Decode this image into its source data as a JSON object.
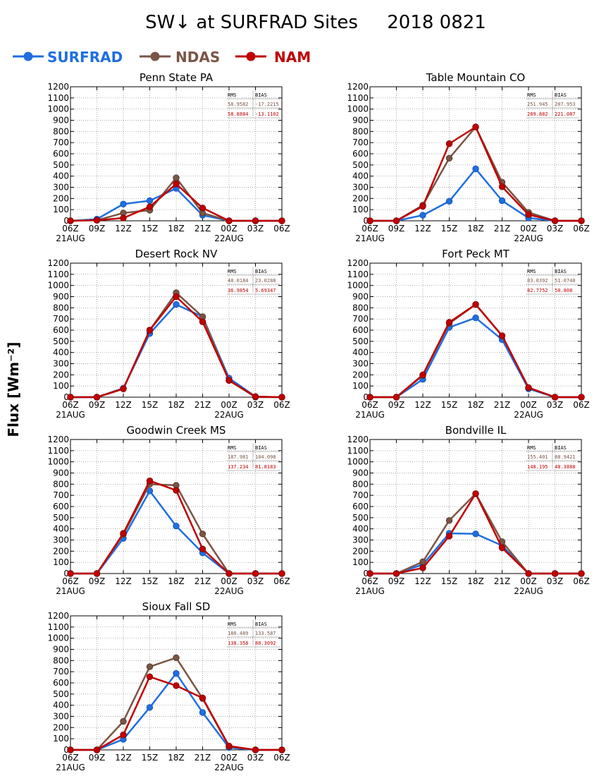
{
  "title": "SW↓ at SURFRAD Sites     2018 0821",
  "ylabel": "Flux [Wm⁻²]",
  "legend": [
    {
      "name": "SURFRAD",
      "color": "#1f6fe0"
    },
    {
      "name": "NDAS",
      "color": "#7a5545"
    },
    {
      "name": "NAM",
      "color": "#c00000"
    }
  ],
  "stats_headers": [
    "RMS",
    "BIAS"
  ],
  "chart_data": [
    {
      "type": "line",
      "title": "Penn State PA",
      "x": [
        "06Z",
        "09Z",
        "12Z",
        "15Z",
        "18Z",
        "21Z",
        "00Z",
        "03Z",
        "06Z"
      ],
      "x_dates": [
        {
          "label": "21AUG",
          "at": "06Z"
        },
        {
          "label": "22AUG",
          "at": "00Z"
        }
      ],
      "ylim": [
        0,
        1200
      ],
      "yticks": [
        0,
        100,
        200,
        300,
        400,
        500,
        600,
        700,
        800,
        900,
        1000,
        1100,
        1200
      ],
      "grid": true,
      "series": [
        {
          "name": "SURFRAD",
          "values": [
            0,
            15,
            150,
            180,
            290,
            50,
            0,
            0,
            0
          ]
        },
        {
          "name": "NDAS",
          "values": [
            0,
            5,
            70,
            95,
            385,
            70,
            0,
            0,
            0
          ]
        },
        {
          "name": "NAM",
          "values": [
            0,
            5,
            25,
            125,
            330,
            115,
            0,
            0,
            0
          ]
        }
      ],
      "stats": {
        "NDAS": [
          "58.9582",
          "-17.2215"
        ],
        "NAM": [
          "58.8884",
          "-13.1102"
        ]
      }
    },
    {
      "type": "line",
      "title": "Table Mountain CO",
      "x": [
        "06Z",
        "09Z",
        "12Z",
        "15Z",
        "18Z",
        "21Z",
        "00Z",
        "03Z",
        "06Z"
      ],
      "x_dates": [
        {
          "label": "21AUG",
          "at": "06Z"
        },
        {
          "label": "22AUG",
          "at": "00Z"
        }
      ],
      "ylim": [
        0,
        1200
      ],
      "yticks": [
        0,
        100,
        200,
        300,
        400,
        500,
        600,
        700,
        800,
        900,
        1000,
        1100,
        1200
      ],
      "grid": true,
      "series": [
        {
          "name": "SURFRAD",
          "values": [
            0,
            0,
            50,
            175,
            465,
            180,
            25,
            0,
            0
          ]
        },
        {
          "name": "NDAS",
          "values": [
            0,
            0,
            140,
            560,
            840,
            345,
            75,
            0,
            0
          ]
        },
        {
          "name": "NAM",
          "values": [
            0,
            0,
            130,
            690,
            840,
            305,
            55,
            0,
            0
          ]
        }
      ],
      "stats": {
        "NDAS": [
          "251.945",
          "207.953"
        ],
        "NAM": [
          "289.882",
          "221.087"
        ]
      }
    },
    {
      "type": "line",
      "title": "Desert Rock NV",
      "x": [
        "06Z",
        "09Z",
        "12Z",
        "15Z",
        "18Z",
        "21Z",
        "00Z",
        "03Z",
        "06Z"
      ],
      "x_dates": [
        {
          "label": "21AUG",
          "at": "06Z"
        },
        {
          "label": "22AUG",
          "at": "00Z"
        }
      ],
      "ylim": [
        0,
        1200
      ],
      "yticks": [
        0,
        100,
        200,
        300,
        400,
        500,
        600,
        700,
        800,
        900,
        1000,
        1100,
        1200
      ],
      "grid": true,
      "series": [
        {
          "name": "SURFRAD",
          "values": [
            0,
            0,
            80,
            570,
            830,
            720,
            170,
            5,
            0
          ]
        },
        {
          "name": "NDAS",
          "values": [
            0,
            0,
            75,
            600,
            935,
            720,
            150,
            0,
            0
          ]
        },
        {
          "name": "NAM",
          "values": [
            0,
            0,
            75,
            600,
            900,
            675,
            150,
            5,
            0
          ]
        }
      ],
      "stats": {
        "NDAS": [
          "48.0184",
          "23.0288"
        ],
        "NAM": [
          "36.9854",
          "5.69347"
        ]
      }
    },
    {
      "type": "line",
      "title": "Fort Peck MT",
      "x": [
        "06Z",
        "09Z",
        "12Z",
        "15Z",
        "18Z",
        "21Z",
        "00Z",
        "03Z",
        "06Z"
      ],
      "x_dates": [
        {
          "label": "21AUG",
          "at": "06Z"
        },
        {
          "label": "22AUG",
          "at": "00Z"
        }
      ],
      "ylim": [
        0,
        1200
      ],
      "yticks": [
        0,
        100,
        200,
        300,
        400,
        500,
        600,
        700,
        800,
        900,
        1000,
        1100,
        1200
      ],
      "grid": true,
      "series": [
        {
          "name": "SURFRAD",
          "values": [
            0,
            0,
            160,
            625,
            710,
            515,
            75,
            0,
            0
          ]
        },
        {
          "name": "NDAS",
          "values": [
            0,
            0,
            195,
            660,
            830,
            550,
            85,
            0,
            0
          ]
        },
        {
          "name": "NAM",
          "values": [
            0,
            0,
            200,
            670,
            830,
            550,
            85,
            0,
            0
          ]
        }
      ],
      "stats": {
        "NDAS": [
          "83.0392",
          "51.0748"
        ],
        "NAM": [
          "82.7752",
          "50.808"
        ]
      }
    },
    {
      "type": "line",
      "title": "Goodwin Creek MS",
      "x": [
        "06Z",
        "09Z",
        "12Z",
        "15Z",
        "18Z",
        "21Z",
        "00Z",
        "03Z",
        "06Z"
      ],
      "x_dates": [
        {
          "label": "21AUG",
          "at": "06Z"
        },
        {
          "label": "22AUG",
          "at": "00Z"
        }
      ],
      "ylim": [
        0,
        1200
      ],
      "yticks": [
        0,
        100,
        200,
        300,
        400,
        500,
        600,
        700,
        800,
        900,
        1000,
        1100,
        1200
      ],
      "grid": true,
      "series": [
        {
          "name": "SURFRAD",
          "values": [
            0,
            0,
            315,
            740,
            425,
            185,
            0,
            0,
            0
          ]
        },
        {
          "name": "NDAS",
          "values": [
            0,
            0,
            350,
            800,
            790,
            355,
            0,
            0,
            0
          ]
        },
        {
          "name": "NAM",
          "values": [
            0,
            0,
            360,
            830,
            745,
            220,
            0,
            0,
            0
          ]
        }
      ],
      "stats": {
        "NDAS": [
          "187.981",
          "104.098"
        ],
        "NAM": [
          "137.234",
          "81.8183"
        ]
      }
    },
    {
      "type": "line",
      "title": "Bondville IL",
      "x": [
        "06Z",
        "09Z",
        "12Z",
        "15Z",
        "18Z",
        "21Z",
        "00Z",
        "03Z",
        "06Z"
      ],
      "x_dates": [
        {
          "label": "21AUG",
          "at": "06Z"
        },
        {
          "label": "22AUG",
          "at": "00Z"
        }
      ],
      "ylim": [
        0,
        1200
      ],
      "yticks": [
        0,
        100,
        200,
        300,
        400,
        500,
        600,
        700,
        800,
        900,
        1000,
        1100,
        1200
      ],
      "grid": true,
      "series": [
        {
          "name": "SURFRAD",
          "values": [
            0,
            0,
            80,
            360,
            355,
            250,
            0,
            0,
            0
          ]
        },
        {
          "name": "NDAS",
          "values": [
            0,
            0,
            105,
            475,
            715,
            285,
            0,
            0,
            0
          ]
        },
        {
          "name": "NAM",
          "values": [
            0,
            0,
            50,
            335,
            715,
            230,
            0,
            0,
            0
          ]
        }
      ],
      "stats": {
        "NDAS": [
          "155.401",
          "88.9421"
        ],
        "NAM": [
          "148.195",
          "48.3888"
        ]
      }
    },
    {
      "type": "line",
      "title": "Sioux Fall SD",
      "x": [
        "06Z",
        "09Z",
        "12Z",
        "15Z",
        "18Z",
        "21Z",
        "00Z",
        "03Z",
        "06Z"
      ],
      "x_dates": [
        {
          "label": "21AUG",
          "at": "06Z"
        },
        {
          "label": "22AUG",
          "at": "00Z"
        }
      ],
      "ylim": [
        0,
        1200
      ],
      "yticks": [
        0,
        100,
        200,
        300,
        400,
        500,
        600,
        700,
        800,
        900,
        1000,
        1100,
        1200
      ],
      "grid": true,
      "series": [
        {
          "name": "SURFRAD",
          "values": [
            0,
            0,
            95,
            380,
            685,
            335,
            20,
            0,
            0
          ]
        },
        {
          "name": "NDAS",
          "values": [
            0,
            0,
            255,
            745,
            825,
            460,
            30,
            0,
            0
          ]
        },
        {
          "name": "NAM",
          "values": [
            0,
            0,
            135,
            655,
            575,
            465,
            35,
            0,
            0
          ]
        }
      ],
      "stats": {
        "NDAS": [
          "180.489",
          "133.587"
        ],
        "NAM": [
          "138.358",
          "80.3092"
        ]
      }
    }
  ]
}
